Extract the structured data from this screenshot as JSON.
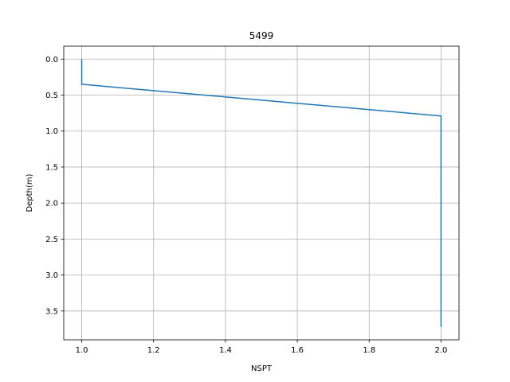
{
  "chart_data": {
    "type": "line",
    "title": "5499",
    "xlabel": "NSPT",
    "ylabel": "Depth(m)",
    "xlim": [
      0.95,
      2.05
    ],
    "ylim": [
      3.9,
      -0.18
    ],
    "y_inverted": true,
    "grid": true,
    "xticks": [
      1.0,
      1.2,
      1.4,
      1.6,
      1.8,
      2.0
    ],
    "xtick_labels": [
      "1.0",
      "1.2",
      "1.4",
      "1.6",
      "1.8",
      "2.0"
    ],
    "yticks": [
      0.0,
      0.5,
      1.0,
      1.5,
      2.0,
      2.5,
      3.0,
      3.5
    ],
    "ytick_labels": [
      "0.0",
      "0.5",
      "1.0",
      "1.5",
      "2.0",
      "2.5",
      "3.0",
      "3.5"
    ],
    "series": [
      {
        "color": "#1f77b4",
        "x": [
          1.0,
          1.0,
          2.0,
          2.0
        ],
        "y": [
          0.0,
          0.35,
          0.79,
          3.72
        ]
      }
    ]
  }
}
